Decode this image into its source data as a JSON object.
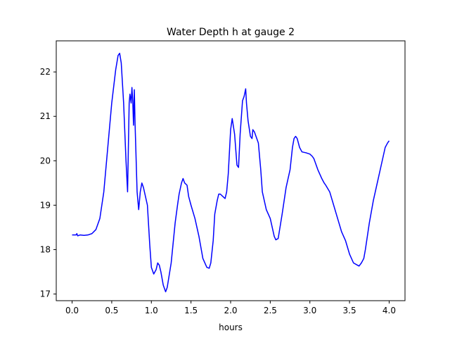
{
  "chart_data": {
    "type": "line",
    "title": "Water Depth h at gauge 2",
    "xlabel": "hours",
    "ylabel": "",
    "xlim": [
      -0.2,
      4.2
    ],
    "ylim": [
      16.85,
      22.7
    ],
    "xticks": [
      0.0,
      0.5,
      1.0,
      1.5,
      2.0,
      2.5,
      3.0,
      3.5,
      4.0
    ],
    "xtick_labels": [
      "0.0",
      "0.5",
      "1.0",
      "1.5",
      "2.0",
      "2.5",
      "3.0",
      "3.5",
      "4.0"
    ],
    "yticks": [
      17,
      18,
      19,
      20,
      21,
      22
    ],
    "ytick_labels": [
      "17",
      "18",
      "19",
      "20",
      "21",
      "22"
    ],
    "grid": false,
    "series": [
      {
        "name": "",
        "color": "#0000ff",
        "x": [
          0.0,
          0.05,
          0.06,
          0.07,
          0.1,
          0.15,
          0.2,
          0.25,
          0.3,
          0.35,
          0.4,
          0.45,
          0.5,
          0.55,
          0.58,
          0.6,
          0.62,
          0.65,
          0.68,
          0.7,
          0.72,
          0.73,
          0.745,
          0.755,
          0.765,
          0.775,
          0.785,
          0.795,
          0.805,
          0.82,
          0.84,
          0.86,
          0.88,
          0.9,
          0.95,
          0.98,
          1.0,
          1.03,
          1.06,
          1.08,
          1.1,
          1.12,
          1.15,
          1.18,
          1.2,
          1.25,
          1.3,
          1.33,
          1.35,
          1.38,
          1.4,
          1.42,
          1.45,
          1.47,
          1.5,
          1.55,
          1.6,
          1.65,
          1.7,
          1.73,
          1.75,
          1.78,
          1.8,
          1.83,
          1.85,
          1.87,
          1.9,
          1.93,
          1.95,
          1.97,
          2.0,
          2.02,
          2.05,
          2.08,
          2.1,
          2.12,
          2.15,
          2.17,
          2.19,
          2.2,
          2.22,
          2.25,
          2.27,
          2.28,
          2.3,
          2.33,
          2.35,
          2.38,
          2.4,
          2.45,
          2.5,
          2.55,
          2.57,
          2.6,
          2.65,
          2.7,
          2.75,
          2.78,
          2.8,
          2.82,
          2.84,
          2.87,
          2.9,
          2.95,
          3.0,
          3.03,
          3.05,
          3.1,
          3.15,
          3.18,
          3.2,
          3.25,
          3.3,
          3.35,
          3.4,
          3.45,
          3.5,
          3.55,
          3.6,
          3.62,
          3.65,
          3.68,
          3.7,
          3.75,
          3.8,
          3.85,
          3.9,
          3.95,
          3.98,
          4.0
        ],
        "y": [
          18.33,
          18.33,
          18.36,
          18.31,
          18.33,
          18.32,
          18.33,
          18.36,
          18.45,
          18.7,
          19.3,
          20.3,
          21.3,
          22.05,
          22.37,
          22.42,
          22.2,
          21.3,
          20.0,
          19.3,
          21.3,
          21.5,
          21.3,
          21.65,
          21.35,
          20.8,
          21.6,
          20.8,
          20.2,
          19.3,
          18.9,
          19.3,
          19.5,
          19.4,
          19.0,
          18.1,
          17.6,
          17.45,
          17.55,
          17.7,
          17.65,
          17.5,
          17.2,
          17.05,
          17.15,
          17.7,
          18.6,
          19.0,
          19.25,
          19.5,
          19.6,
          19.5,
          19.45,
          19.2,
          19.0,
          18.7,
          18.3,
          17.8,
          17.6,
          17.58,
          17.7,
          18.2,
          18.8,
          19.1,
          19.25,
          19.25,
          19.2,
          19.15,
          19.3,
          19.7,
          20.7,
          20.95,
          20.6,
          19.9,
          19.85,
          20.6,
          21.35,
          21.45,
          21.62,
          21.3,
          20.9,
          20.55,
          20.5,
          20.7,
          20.65,
          20.5,
          20.4,
          19.8,
          19.3,
          18.9,
          18.7,
          18.3,
          18.22,
          18.25,
          18.8,
          19.4,
          19.8,
          20.3,
          20.5,
          20.55,
          20.5,
          20.3,
          20.2,
          20.18,
          20.15,
          20.1,
          20.05,
          19.8,
          19.6,
          19.5,
          19.45,
          19.3,
          19.0,
          18.7,
          18.4,
          18.2,
          17.9,
          17.7,
          17.65,
          17.63,
          17.7,
          17.8,
          18.0,
          18.6,
          19.1,
          19.5,
          19.9,
          20.3,
          20.4,
          20.45
        ]
      }
    ]
  }
}
